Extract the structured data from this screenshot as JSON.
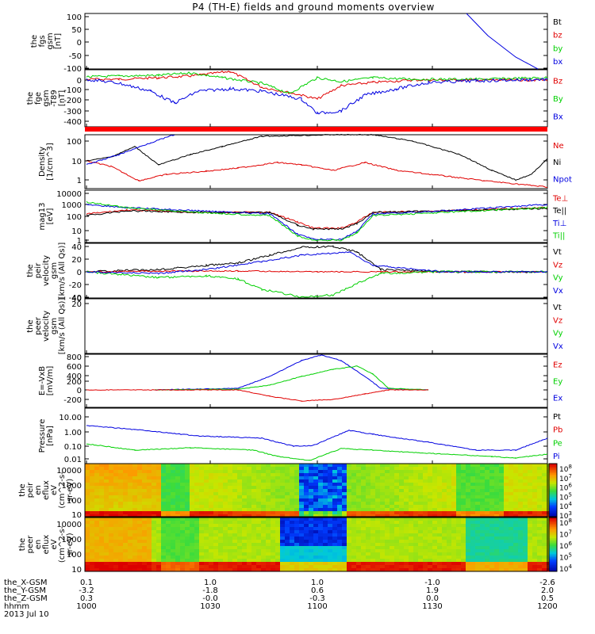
{
  "title": "P4 (TH-E) fields and ground moments overview",
  "colors": {
    "black": "#000000",
    "red": "#e00000",
    "green": "#00d000",
    "blue": "#0000e0",
    "bar": "#ff0000"
  },
  "panels": [
    {
      "ylabel": [
        "the",
        "fgs",
        "gsm",
        "[nT]"
      ],
      "ticks": [
        {
          "v": "100",
          "y": 21
        },
        {
          "v": "50",
          "y": 37
        },
        {
          "v": "0",
          "y": 53
        },
        {
          "v": "-50",
          "y": 70
        },
        {
          "v": "-100",
          "y": 86
        }
      ],
      "legend": [
        {
          "t": "Bt",
          "c": "black"
        },
        {
          "t": "bz",
          "c": "red"
        },
        {
          "t": "by",
          "c": "green"
        },
        {
          "t": "bx",
          "c": "blue"
        }
      ]
    },
    {
      "ylabel": [
        "the",
        "fge",
        "gsm",
        "-T89",
        "[nT]"
      ],
      "ticks": [
        {
          "v": "0",
          "y": 101
        },
        {
          "v": "-100",
          "y": 113
        },
        {
          "v": "-200",
          "y": 126
        },
        {
          "v": "-300",
          "y": 140
        },
        {
          "v": "-400",
          "y": 153
        }
      ],
      "legend": [
        {
          "t": "Bz",
          "c": "red"
        },
        {
          "t": "By",
          "c": "green"
        },
        {
          "t": "Bx",
          "c": "blue"
        }
      ]
    },
    {
      "ylabel": [
        "Density",
        "[1/cm^3]"
      ],
      "ticks": [
        {
          "v": "100",
          "y": 178
        },
        {
          "v": "10",
          "y": 203
        },
        {
          "v": "1",
          "y": 227
        }
      ],
      "legend": [
        {
          "t": "Ne",
          "c": "red"
        },
        {
          "t": "Ni",
          "c": "black"
        },
        {
          "t": "Npot",
          "c": "blue"
        }
      ]
    },
    {
      "ylabel": [
        "mag13",
        "[eV]"
      ],
      "ticks": [
        {
          "v": "10000",
          "y": 244
        },
        {
          "v": "1000",
          "y": 258
        },
        {
          "v": "100",
          "y": 273
        },
        {
          "v": "10",
          "y": 291
        },
        {
          "v": "1",
          "y": 303
        }
      ],
      "legend": [
        {
          "t": "Te⊥",
          "c": "red"
        },
        {
          "t": "Te||",
          "c": "black"
        },
        {
          "t": "Ti⊥",
          "c": "blue"
        },
        {
          "t": "Ti||",
          "c": "green"
        }
      ]
    },
    {
      "ylabel": [
        "the",
        "peir",
        "velocity",
        "gsm",
        "[km/s (All Qs)]"
      ],
      "ticks": [
        {
          "v": "40",
          "y": 311
        },
        {
          "v": "20",
          "y": 327
        },
        {
          "v": "0",
          "y": 343
        },
        {
          "v": "-20",
          "y": 359
        },
        {
          "v": "-40",
          "y": 375
        }
      ],
      "legend": [
        {
          "t": "Vt",
          "c": "black"
        },
        {
          "t": "Vz",
          "c": "red"
        },
        {
          "t": "Vy",
          "c": "green"
        },
        {
          "t": "Vx",
          "c": "blue"
        }
      ]
    },
    {
      "ylabel": [
        "the",
        "peer",
        "velocity",
        "gsm",
        "[km/s (All Qs)]"
      ],
      "ticks": [
        {
          "v": "40",
          "y": 376
        },
        {
          "v": "20",
          "y": 383
        }
      ],
      "legend": [
        {
          "t": "Vt",
          "c": "black"
        },
        {
          "t": "Vz",
          "c": "red"
        },
        {
          "t": "Vy",
          "c": "green"
        },
        {
          "t": "Vx",
          "c": "blue"
        }
      ]
    },
    {
      "ylabel": [
        "E=-VxB",
        "[mV/m]"
      ],
      "ticks": [
        {
          "v": "800",
          "y": 450
        },
        {
          "v": "600",
          "y": 462
        },
        {
          "v": "400",
          "y": 474
        },
        {
          "v": "200",
          "y": 481
        },
        {
          "v": "0",
          "y": 492
        },
        {
          "v": "-200",
          "y": 504
        }
      ],
      "legend": [
        {
          "t": "Ez",
          "c": "red"
        },
        {
          "t": "Ey",
          "c": "green"
        },
        {
          "t": "Ex",
          "c": "blue"
        }
      ]
    },
    {
      "ylabel": [
        "Pressure",
        "[nPa]"
      ],
      "ticks": [
        {
          "v": "10.00",
          "y": 526
        },
        {
          "v": "1.00",
          "y": 545
        },
        {
          "v": "0.10",
          "y": 563
        },
        {
          "v": "0.01",
          "y": 579
        }
      ],
      "legend": [
        {
          "t": "Pt",
          "c": "black"
        },
        {
          "t": "Pb",
          "c": "red"
        },
        {
          "t": "Pe",
          "c": "green"
        },
        {
          "t": "Pi",
          "c": "blue"
        }
      ]
    },
    {
      "ylabel": [
        "the",
        "peir",
        "en",
        "eflux",
        "eV",
        "(cm^2-s-",
        "sr-eV)"
      ],
      "ticks": [
        {
          "v": "10000",
          "y": 593
        },
        {
          "v": "1000",
          "y": 612
        },
        {
          "v": "100",
          "y": 631
        },
        {
          "v": "10",
          "y": 649
        }
      ],
      "colorbar": [
        "10^8",
        "10^7",
        "10^6",
        "10^5",
        "10^4",
        "10^3"
      ]
    },
    {
      "ylabel": [
        "the",
        "peer",
        "en",
        "eflux",
        "eV",
        "(cm^2-s-",
        "sr-eV)"
      ],
      "ticks": [
        {
          "v": "10000",
          "y": 661
        },
        {
          "v": "1000",
          "y": 680
        },
        {
          "v": "100",
          "y": 699
        },
        {
          "v": "10",
          "y": 718
        }
      ],
      "colorbar": [
        "10^8",
        "10^7",
        "10^6",
        "10^5",
        "10^4"
      ]
    }
  ],
  "xaxis": {
    "rows": [
      {
        "label": "the_X-GSM",
        "values": [
          "0.1",
          "1.0",
          "1.0",
          "-1.0",
          "-2.6"
        ]
      },
      {
        "label": "the_Y-GSM",
        "values": [
          "-3.2",
          "-1.8",
          "0.6",
          "1.9",
          "2.0"
        ]
      },
      {
        "label": "the_Z-GSM",
        "values": [
          "0.3",
          "-0.0",
          "-0.3",
          "0.0",
          "0.5"
        ]
      },
      {
        "label": "hhmm",
        "values": [
          "1000",
          "1030",
          "1100",
          "1130",
          "1200"
        ]
      }
    ],
    "date": "2013 Jul 10"
  },
  "chart_data": {
    "type": "line",
    "title": "P4 (TH-E) fields and ground moments overview",
    "date": "2013 Jul 10",
    "x_times_hhmm": [
      "1000",
      "1030",
      "1100",
      "1130",
      "1200"
    ],
    "panels": [
      {
        "name": "the fgs gsm [nT]",
        "ylim": [
          -100,
          100
        ],
        "series": [
          {
            "name": "bx",
            "x": [
              1155,
              1200
            ],
            "values": [
              100,
              -100
            ]
          }
        ]
      },
      {
        "name": "the fge gsm -T89 [nT]",
        "ylim": [
          -400,
          0
        ],
        "series": [
          {
            "name": "Bz",
            "x": [
              1000,
              1030,
              1050,
              1100,
              1110,
              1130,
              1200
            ],
            "values": [
              -10,
              -20,
              -120,
              -200,
              -120,
              -10,
              -5
            ]
          },
          {
            "name": "By",
            "x": [
              1000,
              1030,
              1050,
              1100,
              1110,
              1130,
              1200
            ],
            "values": [
              0,
              20,
              -80,
              -20,
              -60,
              -10,
              0
            ]
          },
          {
            "name": "Bx",
            "x": [
              1000,
              1030,
              1050,
              1100,
              1110,
              1130,
              1200
            ],
            "values": [
              -20,
              -220,
              -120,
              -330,
              -200,
              -40,
              0
            ]
          }
        ]
      },
      {
        "name": "Density [1/cm^3]",
        "ylim": [
          0.5,
          200
        ],
        "log": true,
        "series": [
          {
            "name": "Ne",
            "x": [
              1000,
              1015,
              1040,
              1100,
              1120,
              1200
            ],
            "values": [
              10,
              0.8,
              5,
              2,
              2,
              0.6
            ]
          },
          {
            "name": "Ni",
            "x": [
              1000,
              1015,
              1040,
              1100,
              1120,
              1150,
              1200
            ],
            "values": [
              10,
              5,
              100,
              200,
              200,
              1,
              20
            ]
          }
        ]
      },
      {
        "name": "mag13 [eV]",
        "ylim": [
          1,
          10000
        ],
        "log": true,
        "series": [
          {
            "name": "Te⊥",
            "x": [
              1000,
              1045,
              1055,
              1110,
              1120,
              1200
            ],
            "values": [
              200,
              300,
              20,
              20,
              300,
              300
            ]
          },
          {
            "name": "Ti||",
            "x": [
              1000,
              1045,
              1055,
              1110,
              1120,
              1200
            ],
            "values": [
              500,
              400,
              5,
              5,
              400,
              600
            ]
          }
        ]
      },
      {
        "name": "the peir velocity gsm [km/s (All Qs)]",
        "ylim": [
          -40,
          40
        ],
        "series": [
          {
            "name": "Vt",
            "x": [
              1000,
              1040,
              1100,
              1115,
              1200
            ],
            "values": [
              0,
              10,
              40,
              5,
              2
            ]
          },
          {
            "name": "Vy",
            "x": [
              1000,
              1040,
              1100,
              1115,
              1200
            ],
            "values": [
              0,
              -10,
              -40,
              -5,
              0
            ]
          },
          {
            "name": "Vx",
            "x": [
              1000,
              1040,
              1100,
              1115,
              1200
            ],
            "values": [
              0,
              5,
              30,
              2,
              0
            ]
          }
        ]
      },
      {
        "name": "the peer velocity gsm [km/s (All Qs)]",
        "ylim": [
          -40,
          40
        ],
        "series": []
      },
      {
        "name": "E=-VxB [mV/m]",
        "ylim": [
          -400,
          800
        ],
        "series": [
          {
            "name": "Ex",
            "x": [
              1015,
              1100,
              1125
            ],
            "values": [
              0,
              800,
              0
            ]
          },
          {
            "name": "Ey",
            "x": [
              1015,
              1110,
              1125
            ],
            "values": [
              0,
              500,
              0
            ]
          },
          {
            "name": "Ez",
            "x": [
              1015,
              1100,
              1125
            ],
            "values": [
              0,
              -200,
              0
            ]
          }
        ]
      },
      {
        "name": "Pressure [nPa]",
        "ylim": [
          0.01,
          20
        ],
        "log": true,
        "series": [
          {
            "name": "Pi",
            "x": [
              1000,
              1045,
              1100,
              1150,
              1200
            ],
            "values": [
              3,
              1,
              0.3,
              0.05,
              1
            ]
          },
          {
            "name": "Pe",
            "x": [
              1000,
              1045,
              1100,
              1150,
              1200
            ],
            "values": [
              0.05,
              0.1,
              0.02,
              0.01,
              0.03
            ]
          }
        ]
      }
    ]
  }
}
